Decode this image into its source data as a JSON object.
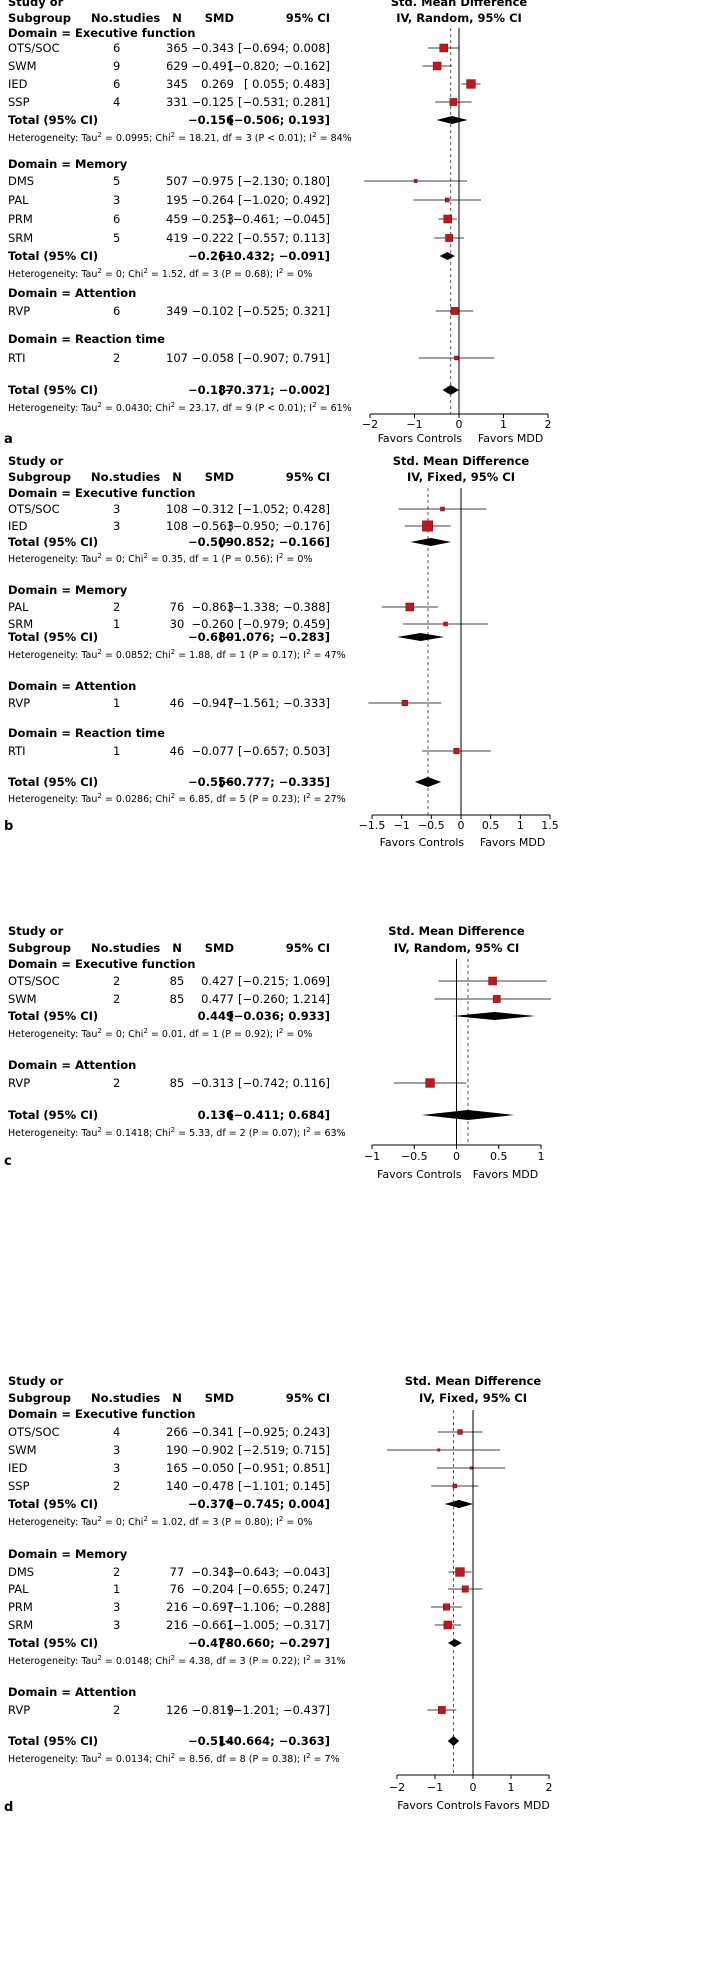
{
  "chart_data": [
    {
      "id": "a",
      "type": "forest",
      "panel_label": "a",
      "columns": [
        "Study or",
        "Subgroup",
        "No.studies",
        "N",
        "SMD",
        "95% CI"
      ],
      "plot_title": [
        "Std. Mean Difference",
        "IV, Random, 95% CI"
      ],
      "xlim": [
        -2,
        2
      ],
      "x_ticks": [
        -2,
        -1,
        0,
        1,
        2
      ],
      "x_tick_labels": [
        "−2",
        "−1",
        "0",
        "1",
        "2"
      ],
      "favors_left": "Favors Controls",
      "favors_right": "Favors MDD",
      "ref_line": -0.187,
      "domains": [
        {
          "title": "Domain = Executive function",
          "studies": [
            {
              "name": "OTS/SOC",
              "k": "6",
              "n": "365",
              "smd_text": "−0.343",
              "ci_text": "[−0.694;  0.008]",
              "smd": -0.343,
              "lo": -0.694,
              "hi": 0.008,
              "w": 1.0
            },
            {
              "name": "SWM",
              "k": "9",
              "n": "629",
              "smd_text": "−0.491",
              "ci_text": "[−0.820; −0.162]",
              "smd": -0.491,
              "lo": -0.82,
              "hi": -0.162,
              "w": 1.0
            },
            {
              "name": "IED",
              "k": "6",
              "n": "345",
              "smd_text": "0.269",
              "ci_text": "[ 0.055;  0.483]",
              "smd": 0.269,
              "lo": 0.055,
              "hi": 0.483,
              "w": 1.1
            },
            {
              "name": "SSP",
              "k": "4",
              "n": "331",
              "smd_text": "−0.125",
              "ci_text": "[−0.531;  0.281]",
              "smd": -0.125,
              "lo": -0.531,
              "hi": 0.281,
              "w": 0.9
            }
          ],
          "total": {
            "label": "Total (95% CI)",
            "smd_text": "−0.156",
            "ci_text": "[−0.506;  0.193]",
            "smd": -0.156,
            "lo": -0.506,
            "hi": 0.193
          },
          "het": {
            "pre": "Heterogeneity: Tau",
            "sup1": "2",
            "mid1": " = 0.0995; Chi",
            "sup2": "2",
            "mid2": " = 18.21, df = 3 (P < 0.01); I",
            "sup3": "2",
            "post": " = 84%"
          }
        },
        {
          "title": "Domain = Memory",
          "studies": [
            {
              "name": "DMS",
              "k": "5",
              "n": "507",
              "smd_text": "−0.975",
              "ci_text": "[−2.130;  0.180]",
              "smd": -0.975,
              "lo": -2.13,
              "hi": 0.18,
              "w": 0.4
            },
            {
              "name": "PAL",
              "k": "3",
              "n": "195",
              "smd_text": "−0.264",
              "ci_text": "[−1.020;  0.492]",
              "smd": -0.264,
              "lo": -1.02,
              "hi": 0.492,
              "w": 0.5
            },
            {
              "name": "PRM",
              "k": "6",
              "n": "459",
              "smd_text": "−0.253",
              "ci_text": "[−0.461; −0.045]",
              "smd": -0.253,
              "lo": -0.461,
              "hi": -0.045,
              "w": 1.0
            },
            {
              "name": "SRM",
              "k": "5",
              "n": "419",
              "smd_text": "−0.222",
              "ci_text": "[−0.557;  0.113]",
              "smd": -0.222,
              "lo": -0.557,
              "hi": 0.113,
              "w": 0.9
            }
          ],
          "total": {
            "label": "Total (95% CI)",
            "smd_text": "−0.261",
            "ci_text": "[−0.432; −0.091]",
            "smd": -0.261,
            "lo": -0.432,
            "hi": -0.091
          },
          "het": {
            "pre": "Heterogeneity: Tau",
            "sup1": "2",
            "mid1": " = 0; Chi",
            "sup2": "2",
            "mid2": " = 1.52, df = 3 (P = 0.68); I",
            "sup3": "2",
            "post": " = 0%"
          }
        },
        {
          "title": "Domain = Attention",
          "studies": [
            {
              "name": "RVP",
              "k": "6",
              "n": "349",
              "smd_text": "−0.102",
              "ci_text": "[−0.525;  0.321]",
              "smd": -0.102,
              "lo": -0.525,
              "hi": 0.321,
              "w": 0.9
            }
          ],
          "total": null,
          "het": null
        },
        {
          "title": "Domain = Reaction time",
          "studies": [
            {
              "name": "RTI",
              "k": "2",
              "n": "107",
              "smd_text": "−0.058",
              "ci_text": "[−0.907;  0.791]",
              "smd": -0.058,
              "lo": -0.907,
              "hi": 0.791,
              "w": 0.5
            }
          ],
          "total": null,
          "het": null
        }
      ],
      "overall": {
        "label": "Total (95% CI)",
        "smd_text": "−0.187",
        "ci_text": "[−0.371; −0.002]",
        "smd": -0.187,
        "lo": -0.371,
        "hi": -0.002
      },
      "overall_het": {
        "pre": "Heterogeneity: Tau",
        "sup1": "2",
        "mid1": " = 0.0430; Chi",
        "sup2": "2",
        "mid2": " = 23.17, df = 9 (P < 0.01); I",
        "sup3": "2",
        "post": " = 61%"
      }
    },
    {
      "id": "b",
      "type": "forest",
      "panel_label": "b",
      "columns": [
        "Study or",
        "Subgroup",
        "No.studies",
        "N",
        "SMD",
        "95% CI"
      ],
      "plot_title": [
        "Std. Mean Difference",
        "IV, Fixed, 95% CI"
      ],
      "xlim": [
        -1.5,
        1.5
      ],
      "x_ticks": [
        -1.5,
        -1,
        -0.5,
        0,
        0.5,
        1,
        1.5
      ],
      "x_tick_labels": [
        "−1.5",
        "−1",
        "−0.5",
        "0",
        "0.5",
        "1",
        "1.5"
      ],
      "favors_left": "Favors Controls",
      "favors_right": "Favors MDD",
      "ref_line": -0.556,
      "domains": [
        {
          "title": "Domain = Executive function",
          "studies": [
            {
              "name": "OTS/SOC",
              "k": "3",
              "n": "108",
              "smd_text": "−0.312",
              "ci_text": "[−1.052;  0.428]",
              "smd": -0.312,
              "lo": -1.052,
              "hi": 0.428,
              "w": 0.5
            },
            {
              "name": "IED",
              "k": "3",
              "n": "108",
              "smd_text": "−0.563",
              "ci_text": "[−0.950; −0.176]",
              "smd": -0.563,
              "lo": -0.95,
              "hi": -0.176,
              "w": 1.3
            }
          ],
          "total": {
            "label": "Total (95% CI)",
            "smd_text": "−0.509",
            "ci_text": "[−0.852; −0.166]",
            "smd": -0.509,
            "lo": -0.852,
            "hi": -0.166
          },
          "het": {
            "pre": "Heterogeneity: Tau",
            "sup1": "2",
            "mid1": " = 0; Chi",
            "sup2": "2",
            "mid2": " = 0.35, df = 1 (P = 0.56); I",
            "sup3": "2",
            "post": " = 0%"
          }
        },
        {
          "title": "Domain = Memory",
          "studies": [
            {
              "name": "PAL",
              "k": "2",
              "n": "76",
              "smd_text": "−0.863",
              "ci_text": "[−1.338; −0.388]",
              "smd": -0.863,
              "lo": -1.338,
              "hi": -0.388,
              "w": 1.0
            },
            {
              "name": "SRM",
              "k": "1",
              "n": "30",
              "smd_text": "−0.260",
              "ci_text": "[−0.979;  0.459]",
              "smd": -0.26,
              "lo": -0.979,
              "hi": 0.459,
              "w": 0.5
            }
          ],
          "total": {
            "label": "Total (95% CI)",
            "smd_text": "−0.680",
            "ci_text": "[−1.076; −0.283]",
            "smd": -0.68,
            "lo": -1.076,
            "hi": -0.283
          },
          "het": {
            "pre": "Heterogeneity: Tau",
            "sup1": "2",
            "mid1": " = 0.0852; Chi",
            "sup2": "2",
            "mid2": " = 1.88, df = 1 (P = 0.17); I",
            "sup3": "2",
            "post": " = 47%"
          }
        },
        {
          "title": "Domain = Attention",
          "studies": [
            {
              "name": "RVP",
              "k": "1",
              "n": "46",
              "smd_text": "−0.947",
              "ci_text": "[−1.561; −0.333]",
              "smd": -0.947,
              "lo": -1.561,
              "hi": -0.333,
              "w": 0.7
            }
          ],
          "total": null,
          "het": null
        },
        {
          "title": "Domain = Reaction time",
          "studies": [
            {
              "name": "RTI",
              "k": "1",
              "n": "46",
              "smd_text": "−0.077",
              "ci_text": "[−0.657;  0.503]",
              "smd": -0.077,
              "lo": -0.657,
              "hi": 0.503,
              "w": 0.7
            }
          ],
          "total": null,
          "het": null
        }
      ],
      "overall": {
        "label": "Total (95% CI)",
        "smd_text": "−0.556",
        "ci_text": "[−0.777; −0.335]",
        "smd": -0.556,
        "lo": -0.777,
        "hi": -0.335
      },
      "overall_het": {
        "pre": "Heterogeneity: Tau",
        "sup1": "2",
        "mid1": " = 0.0286; Chi",
        "sup2": "2",
        "mid2": " = 6.85, df = 5 (P = 0.23); I",
        "sup3": "2",
        "post": " = 27%"
      }
    },
    {
      "id": "c",
      "type": "forest",
      "panel_label": "c",
      "columns": [
        "Study or",
        "Subgroup",
        "No.studies",
        "N",
        "SMD",
        "95% CI"
      ],
      "plot_title": [
        "Std. Mean Difference",
        "IV, Random, 95% CI"
      ],
      "xlim": [
        -1,
        1
      ],
      "x_ticks": [
        -1,
        -0.5,
        0,
        0.5,
        1
      ],
      "x_tick_labels": [
        "−1",
        "−0.5",
        "0",
        "0.5",
        "1"
      ],
      "favors_left": "Favors Controls",
      "favors_right": "Favors MDD",
      "ref_line": 0.136,
      "domains": [
        {
          "title": "Domain = Executive function",
          "studies": [
            {
              "name": "OTS/SOC",
              "k": "2",
              "n": "85",
              "smd_text": "0.427",
              "ci_text": "[−0.215; 1.069]",
              "smd": 0.427,
              "lo": -0.215,
              "hi": 1.069,
              "w": 1.0
            },
            {
              "name": "SWM",
              "k": "2",
              "n": "85",
              "smd_text": "0.477",
              "ci_text": "[−0.260; 1.214]",
              "smd": 0.477,
              "lo": -0.26,
              "hi": 1.214,
              "w": 0.9
            }
          ],
          "total": {
            "label": "Total (95% CI)",
            "smd_text": "0.449",
            "ci_text": "[−0.036; 0.933]",
            "smd": 0.449,
            "lo": -0.036,
            "hi": 0.933
          },
          "het": {
            "pre": "Heterogeneity: Tau",
            "sup1": "2",
            "mid1": " = 0; Chi",
            "sup2": "2",
            "mid2": " = 0.01, df = 1 (P = 0.92); I",
            "sup3": "2",
            "post": " = 0%"
          }
        },
        {
          "title": "Domain = Attention",
          "studies": [
            {
              "name": "RVP",
              "k": "2",
              "n": "85",
              "smd_text": "−0.313",
              "ci_text": "[−0.742; 0.116]",
              "smd": -0.313,
              "lo": -0.742,
              "hi": 0.116,
              "w": 1.1
            }
          ],
          "total": null,
          "het": null
        }
      ],
      "overall": {
        "label": "Total (95% CI)",
        "smd_text": "0.136",
        "ci_text": "[−0.411; 0.684]",
        "smd": 0.136,
        "lo": -0.411,
        "hi": 0.684
      },
      "overall_het": {
        "pre": "Heterogeneity: Tau",
        "sup1": "2",
        "mid1": " = 0.1418; Chi",
        "sup2": "2",
        "mid2": " = 5.33, df = 2 (P = 0.07); I",
        "sup3": "2",
        "post": " = 63%"
      }
    },
    {
      "id": "d",
      "type": "forest",
      "panel_label": "d",
      "columns": [
        "Study or",
        "Subgroup",
        "No.studies",
        "N",
        "SMD",
        "95% CI"
      ],
      "plot_title": [
        "Std. Mean Difference",
        "IV, Fixed, 95% CI"
      ],
      "xlim": [
        -2,
        2
      ],
      "x_ticks": [
        -2,
        -1,
        0,
        1,
        2
      ],
      "x_tick_labels": [
        "−2",
        "−1",
        "0",
        "1",
        "2"
      ],
      "favors_left": "Favors Controls",
      "favors_right": "Favors MDD",
      "ref_line": -0.514,
      "domains": [
        {
          "title": "Domain = Executive function",
          "studies": [
            {
              "name": "OTS/SOC",
              "k": "4",
              "n": "266",
              "smd_text": "−0.341",
              "ci_text": "[−0.925;  0.243]",
              "smd": -0.341,
              "lo": -0.925,
              "hi": 0.243,
              "w": 0.6
            },
            {
              "name": "SWM",
              "k": "3",
              "n": "190",
              "smd_text": "−0.902",
              "ci_text": "[−2.519;  0.715]",
              "smd": -0.902,
              "lo": -2.519,
              "hi": 0.715,
              "w": 0.3
            },
            {
              "name": "IED",
              "k": "3",
              "n": "165",
              "smd_text": "−0.050",
              "ci_text": "[−0.951;  0.851]",
              "smd": -0.05,
              "lo": -0.951,
              "hi": 0.851,
              "w": 0.3
            },
            {
              "name": "SSP",
              "k": "2",
              "n": "140",
              "smd_text": "−0.478",
              "ci_text": "[−1.101;  0.145]",
              "smd": -0.478,
              "lo": -1.101,
              "hi": 0.145,
              "w": 0.5
            }
          ],
          "total": {
            "label": "Total (95% CI)",
            "smd_text": "−0.370",
            "ci_text": "[−0.745;  0.004]",
            "smd": -0.37,
            "lo": -0.745,
            "hi": 0.004
          },
          "het": {
            "pre": "Heterogeneity: Tau",
            "sup1": "2",
            "mid1": " = 0; Chi",
            "sup2": "2",
            "mid2": " = 1.02, df = 3 (P = 0.80); I",
            "sup3": "2",
            "post": " = 0%"
          }
        },
        {
          "title": "Domain = Memory",
          "studies": [
            {
              "name": "DMS",
              "k": "2",
              "n": "77",
              "smd_text": "−0.343",
              "ci_text": "[−0.643; −0.043]",
              "smd": -0.343,
              "lo": -0.643,
              "hi": -0.043,
              "w": 1.1
            },
            {
              "name": "PAL",
              "k": "1",
              "n": "76",
              "smd_text": "−0.204",
              "ci_text": "[−0.655;  0.247]",
              "smd": -0.204,
              "lo": -0.655,
              "hi": 0.247,
              "w": 0.8
            },
            {
              "name": "PRM",
              "k": "3",
              "n": "216",
              "smd_text": "−0.697",
              "ci_text": "[−1.106; −0.288]",
              "smd": -0.697,
              "lo": -1.106,
              "hi": -0.288,
              "w": 0.8
            },
            {
              "name": "SRM",
              "k": "3",
              "n": "216",
              "smd_text": "−0.661",
              "ci_text": "[−1.005; −0.317]",
              "smd": -0.661,
              "lo": -1.005,
              "hi": -0.317,
              "w": 1.0
            }
          ],
          "total": {
            "label": "Total (95% CI)",
            "smd_text": "−0.478",
            "ci_text": "[−0.660; −0.297]",
            "smd": -0.478,
            "lo": -0.66,
            "hi": -0.297
          },
          "het": {
            "pre": "Heterogeneity: Tau",
            "sup1": "2",
            "mid1": " = 0.0148; Chi",
            "sup2": "2",
            "mid2": " = 4.38, df = 3 (P = 0.22); I",
            "sup3": "2",
            "post": " = 31%"
          }
        },
        {
          "title": "Domain = Attention",
          "studies": [
            {
              "name": "RVP",
              "k": "2",
              "n": "126",
              "smd_text": "−0.819",
              "ci_text": "[−1.201; −0.437]",
              "smd": -0.819,
              "lo": -1.201,
              "hi": -0.437,
              "w": 0.9
            }
          ],
          "total": null,
          "het": null
        }
      ],
      "overall": {
        "label": "Total (95% CI)",
        "smd_text": "−0.514",
        "ci_text": "[−0.664; −0.363]",
        "smd": -0.514,
        "lo": -0.664,
        "hi": -0.363
      },
      "overall_het": {
        "pre": "Heterogeneity: Tau",
        "sup1": "2",
        "mid1": " = 0.0134; Chi",
        "sup2": "2",
        "mid2": " = 8.56, df = 8 (P = 0.38); I",
        "sup3": "2",
        "post": " = 7%"
      }
    }
  ]
}
